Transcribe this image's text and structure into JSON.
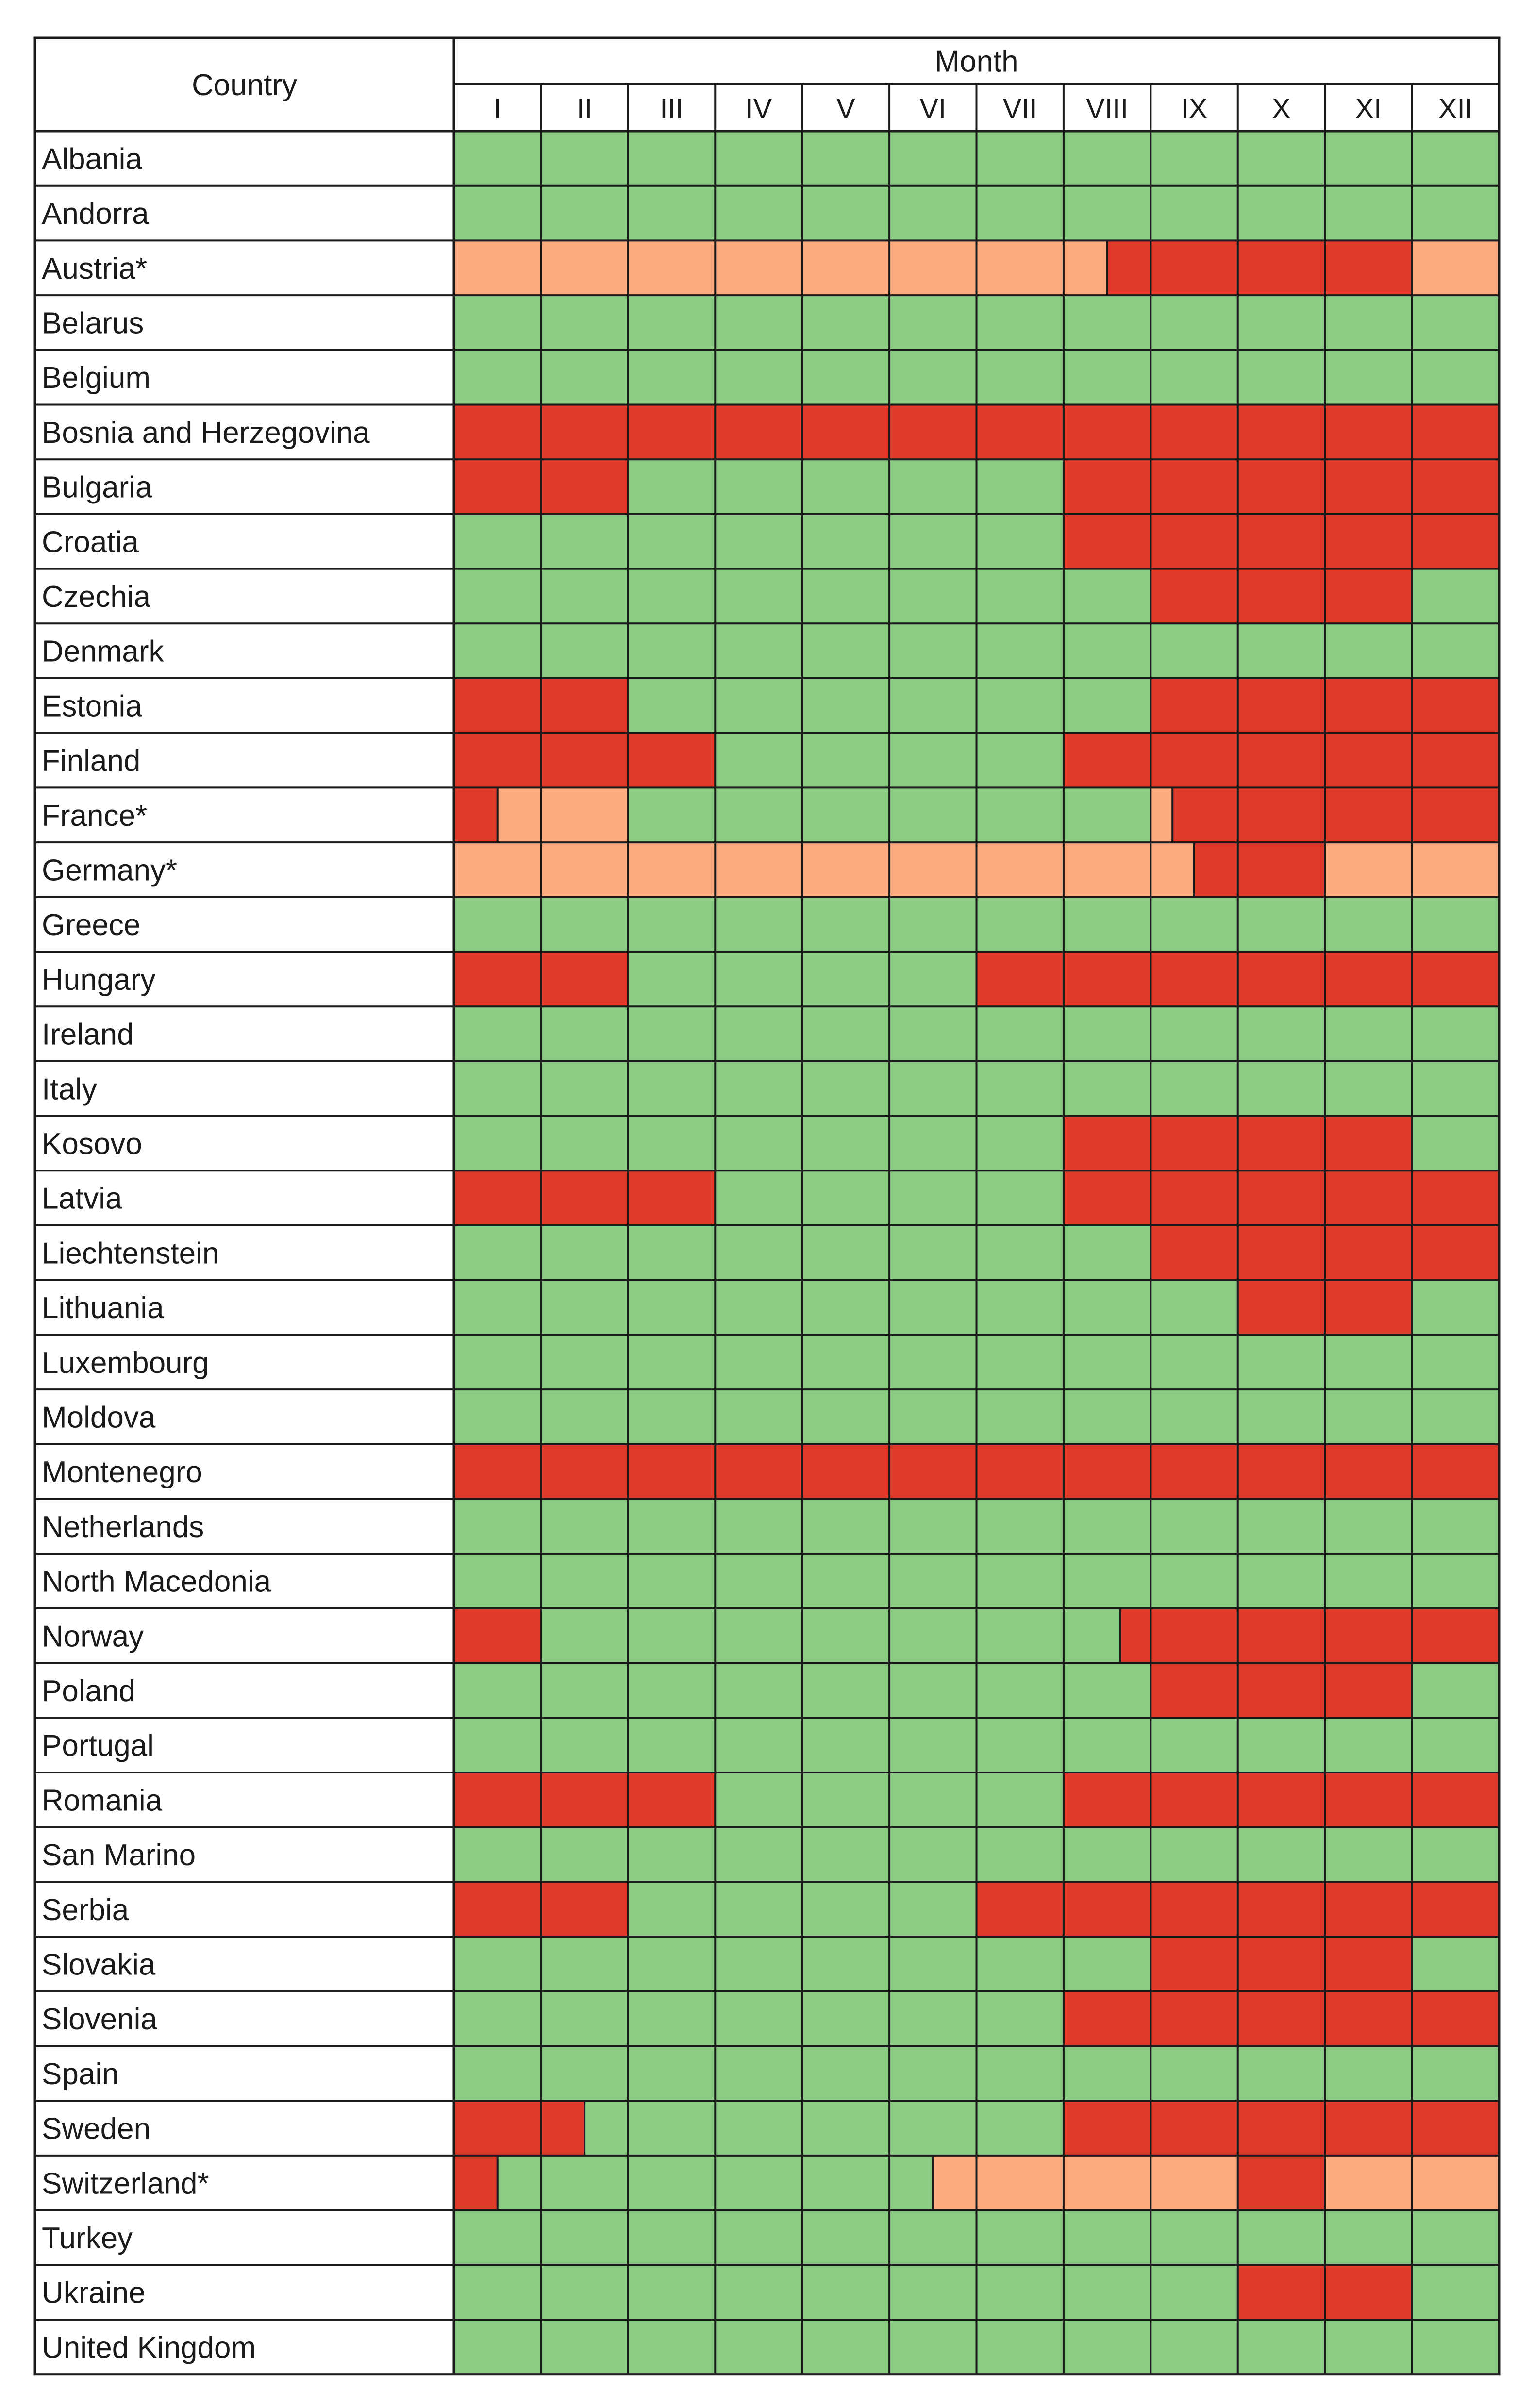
{
  "chart_data": {
    "type": "heatmap",
    "title": "",
    "row_header": "Country",
    "column_header": "Month",
    "months": [
      "I",
      "II",
      "III",
      "IV",
      "V",
      "VI",
      "VII",
      "VIII",
      "IX",
      "X",
      "XI",
      "XII"
    ],
    "colors": {
      "G": "#8ccb84",
      "R": "#e03a2b",
      "O": "#fbab7f"
    },
    "rows": [
      {
        "country": "Albania",
        "cells": [
          "G",
          "G",
          "G",
          "G",
          "G",
          "G",
          "G",
          "G",
          "G",
          "G",
          "G",
          "G"
        ]
      },
      {
        "country": "Andorra",
        "cells": [
          "G",
          "G",
          "G",
          "G",
          "G",
          "G",
          "G",
          "G",
          "G",
          "G",
          "G",
          "G"
        ]
      },
      {
        "country": "Austria*",
        "cells": [
          "O",
          "O",
          "O",
          "O",
          "O",
          "O",
          "O",
          [
            [
              "O",
              0.5
            ],
            [
              "R",
              0.5
            ]
          ],
          "R",
          "R",
          "R",
          "O"
        ]
      },
      {
        "country": "Belarus",
        "cells": [
          "G",
          "G",
          "G",
          "G",
          "G",
          "G",
          "G",
          "G",
          "G",
          "G",
          "G",
          "G"
        ]
      },
      {
        "country": "Belgium",
        "cells": [
          "G",
          "G",
          "G",
          "G",
          "G",
          "G",
          "G",
          "G",
          "G",
          "G",
          "G",
          "G"
        ]
      },
      {
        "country": "Bosnia and Herzegovina",
        "cells": [
          "R",
          "R",
          "R",
          "R",
          "R",
          "R",
          "R",
          "R",
          "R",
          "R",
          "R",
          "R"
        ]
      },
      {
        "country": "Bulgaria",
        "cells": [
          "R",
          "R",
          "G",
          "G",
          "G",
          "G",
          "G",
          "R",
          "R",
          "R",
          "R",
          "R"
        ]
      },
      {
        "country": "Croatia",
        "cells": [
          "G",
          "G",
          "G",
          "G",
          "G",
          "G",
          "G",
          "R",
          "R",
          "R",
          "R",
          "R"
        ]
      },
      {
        "country": "Czechia",
        "cells": [
          "G",
          "G",
          "G",
          "G",
          "G",
          "G",
          "G",
          "G",
          "R",
          "R",
          "R",
          "G"
        ]
      },
      {
        "country": "Denmark",
        "cells": [
          "G",
          "G",
          "G",
          "G",
          "G",
          "G",
          "G",
          "G",
          "G",
          "G",
          "G",
          "G"
        ]
      },
      {
        "country": "Estonia",
        "cells": [
          "R",
          "R",
          "G",
          "G",
          "G",
          "G",
          "G",
          "G",
          "R",
          "R",
          "R",
          "R"
        ]
      },
      {
        "country": "Finland",
        "cells": [
          "R",
          "R",
          "R",
          "G",
          "G",
          "G",
          "G",
          "R",
          "R",
          "R",
          "R",
          "R"
        ]
      },
      {
        "country": "France*",
        "cells": [
          [
            [
              "R",
              0.5
            ],
            [
              "O",
              0.5
            ]
          ],
          "O",
          "G",
          "G",
          "G",
          "G",
          "G",
          "G",
          [
            [
              "O",
              0.25
            ],
            [
              "R",
              0.75
            ]
          ],
          "R",
          "R",
          "R"
        ]
      },
      {
        "country": "Germany*",
        "cells": [
          "O",
          "O",
          "O",
          "O",
          "O",
          "O",
          "O",
          "O",
          [
            [
              "O",
              0.5
            ],
            [
              "R",
              0.5
            ]
          ],
          "R",
          "O",
          "O"
        ]
      },
      {
        "country": "Greece",
        "cells": [
          "G",
          "G",
          "G",
          "G",
          "G",
          "G",
          "G",
          "G",
          "G",
          "G",
          "G",
          "G"
        ]
      },
      {
        "country": "Hungary",
        "cells": [
          "R",
          "R",
          "G",
          "G",
          "G",
          "G",
          "R",
          "R",
          "R",
          "R",
          "R",
          "R"
        ]
      },
      {
        "country": "Ireland",
        "cells": [
          "G",
          "G",
          "G",
          "G",
          "G",
          "G",
          "G",
          "G",
          "G",
          "G",
          "G",
          "G"
        ]
      },
      {
        "country": "Italy",
        "cells": [
          "G",
          "G",
          "G",
          "G",
          "G",
          "G",
          "G",
          "G",
          "G",
          "G",
          "G",
          "G"
        ]
      },
      {
        "country": "Kosovo",
        "cells": [
          "G",
          "G",
          "G",
          "G",
          "G",
          "G",
          "G",
          "R",
          "R",
          "R",
          "R",
          "G"
        ]
      },
      {
        "country": "Latvia",
        "cells": [
          "R",
          "R",
          "R",
          "G",
          "G",
          "G",
          "G",
          "R",
          "R",
          "R",
          "R",
          "R"
        ]
      },
      {
        "country": "Liechtenstein",
        "cells": [
          "G",
          "G",
          "G",
          "G",
          "G",
          "G",
          "G",
          "G",
          "R",
          "R",
          "R",
          "R"
        ]
      },
      {
        "country": "Lithuania",
        "cells": [
          "G",
          "G",
          "G",
          "G",
          "G",
          "G",
          "G",
          "G",
          "G",
          "R",
          "R",
          "G"
        ]
      },
      {
        "country": "Luxembourg",
        "cells": [
          "G",
          "G",
          "G",
          "G",
          "G",
          "G",
          "G",
          "G",
          "G",
          "G",
          "G",
          "G"
        ]
      },
      {
        "country": "Moldova",
        "cells": [
          "G",
          "G",
          "G",
          "G",
          "G",
          "G",
          "G",
          "G",
          "G",
          "G",
          "G",
          "G"
        ]
      },
      {
        "country": "Montenegro",
        "cells": [
          "R",
          "R",
          "R",
          "R",
          "R",
          "R",
          "R",
          "R",
          "R",
          "R",
          "R",
          "R"
        ]
      },
      {
        "country": "Netherlands",
        "cells": [
          "G",
          "G",
          "G",
          "G",
          "G",
          "G",
          "G",
          "G",
          "G",
          "G",
          "G",
          "G"
        ]
      },
      {
        "country": "North Macedonia",
        "cells": [
          "G",
          "G",
          "G",
          "G",
          "G",
          "G",
          "G",
          "G",
          "G",
          "G",
          "G",
          "G"
        ]
      },
      {
        "country": "Norway",
        "cells": [
          "R",
          "G",
          "G",
          "G",
          "G",
          "G",
          "G",
          [
            [
              "G",
              0.65
            ],
            [
              "R",
              0.35
            ]
          ],
          "R",
          "R",
          "R",
          "R"
        ]
      },
      {
        "country": "Poland",
        "cells": [
          "G",
          "G",
          "G",
          "G",
          "G",
          "G",
          "G",
          "G",
          "R",
          "R",
          "R",
          "G"
        ]
      },
      {
        "country": "Portugal",
        "cells": [
          "G",
          "G",
          "G",
          "G",
          "G",
          "G",
          "G",
          "G",
          "G",
          "G",
          "G",
          "G"
        ]
      },
      {
        "country": "Romania",
        "cells": [
          "R",
          "R",
          "R",
          "G",
          "G",
          "G",
          "G",
          "R",
          "R",
          "R",
          "R",
          "R"
        ]
      },
      {
        "country": "San Marino",
        "cells": [
          "G",
          "G",
          "G",
          "G",
          "G",
          "G",
          "G",
          "G",
          "G",
          "G",
          "G",
          "G"
        ]
      },
      {
        "country": "Serbia",
        "cells": [
          "R",
          "R",
          "G",
          "G",
          "G",
          "G",
          "R",
          "R",
          "R",
          "R",
          "R",
          "R"
        ]
      },
      {
        "country": "Slovakia",
        "cells": [
          "G",
          "G",
          "G",
          "G",
          "G",
          "G",
          "G",
          "G",
          "R",
          "R",
          "R",
          "G"
        ]
      },
      {
        "country": "Slovenia",
        "cells": [
          "G",
          "G",
          "G",
          "G",
          "G",
          "G",
          "G",
          "R",
          "R",
          "R",
          "R",
          "R"
        ]
      },
      {
        "country": "Spain",
        "cells": [
          "G",
          "G",
          "G",
          "G",
          "G",
          "G",
          "G",
          "G",
          "G",
          "G",
          "G",
          "G"
        ]
      },
      {
        "country": "Sweden",
        "cells": [
          "R",
          [
            [
              "R",
              0.5
            ],
            [
              "G",
              0.5
            ]
          ],
          "G",
          "G",
          "G",
          "G",
          "G",
          "R",
          "R",
          "R",
          "R",
          "R"
        ]
      },
      {
        "country": "Switzerland*",
        "cells": [
          [
            [
              "R",
              0.5
            ],
            [
              "G",
              0.5
            ]
          ],
          "G",
          "G",
          "G",
          "G",
          [
            [
              "G",
              0.5
            ],
            [
              "O",
              0.5
            ]
          ],
          "O",
          "O",
          "O",
          "R",
          "O",
          "O"
        ]
      },
      {
        "country": "Turkey",
        "cells": [
          "G",
          "G",
          "G",
          "G",
          "G",
          "G",
          "G",
          "G",
          "G",
          "G",
          "G",
          "G"
        ]
      },
      {
        "country": "Ukraine",
        "cells": [
          "G",
          "G",
          "G",
          "G",
          "G",
          "G",
          "G",
          "G",
          "G",
          "R",
          "R",
          "G"
        ]
      },
      {
        "country": "United Kingdom",
        "cells": [
          "G",
          "G",
          "G",
          "G",
          "G",
          "G",
          "G",
          "G",
          "G",
          "G",
          "G",
          "G"
        ]
      }
    ]
  }
}
